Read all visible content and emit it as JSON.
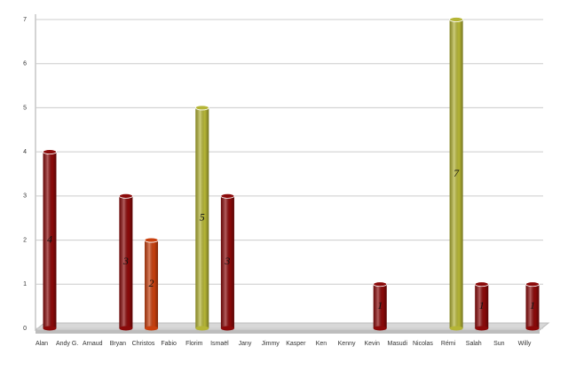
{
  "chart_data": {
    "type": "bar",
    "categories": [
      "Alan",
      "Andy G.",
      "Arnaud",
      "Bryan",
      "Christos",
      "Fabio",
      "Florim",
      "Ismaël",
      "Jany",
      "Jimmy",
      "Kasper",
      "Ken",
      "Kenny",
      "Kevin",
      "Masudi",
      "Nicolas",
      "Rémi",
      "Salah",
      "Sun",
      "Willy"
    ],
    "values": [
      4,
      0,
      0,
      3,
      2,
      0,
      5,
      3,
      0,
      0,
      0,
      0,
      0,
      1,
      0,
      0,
      7,
      1,
      0,
      1
    ],
    "colors": [
      "#8b0a0a",
      "#8b0a0a",
      "#8b0a0a",
      "#8b0a0a",
      "#c8400e",
      "#8b0a0a",
      "#b5b536",
      "#8b0a0a",
      "#8b0a0a",
      "#8b0a0a",
      "#8b0a0a",
      "#8b0a0a",
      "#8b0a0a",
      "#8b0a0a",
      "#8b0a0a",
      "#8b0a0a",
      "#b5b536",
      "#8b0a0a",
      "#8b0a0a",
      "#8b0a0a"
    ],
    "ylim": [
      0,
      7
    ],
    "yticks": [
      0,
      1,
      2,
      3,
      4,
      5,
      6,
      7
    ],
    "grid": true
  }
}
